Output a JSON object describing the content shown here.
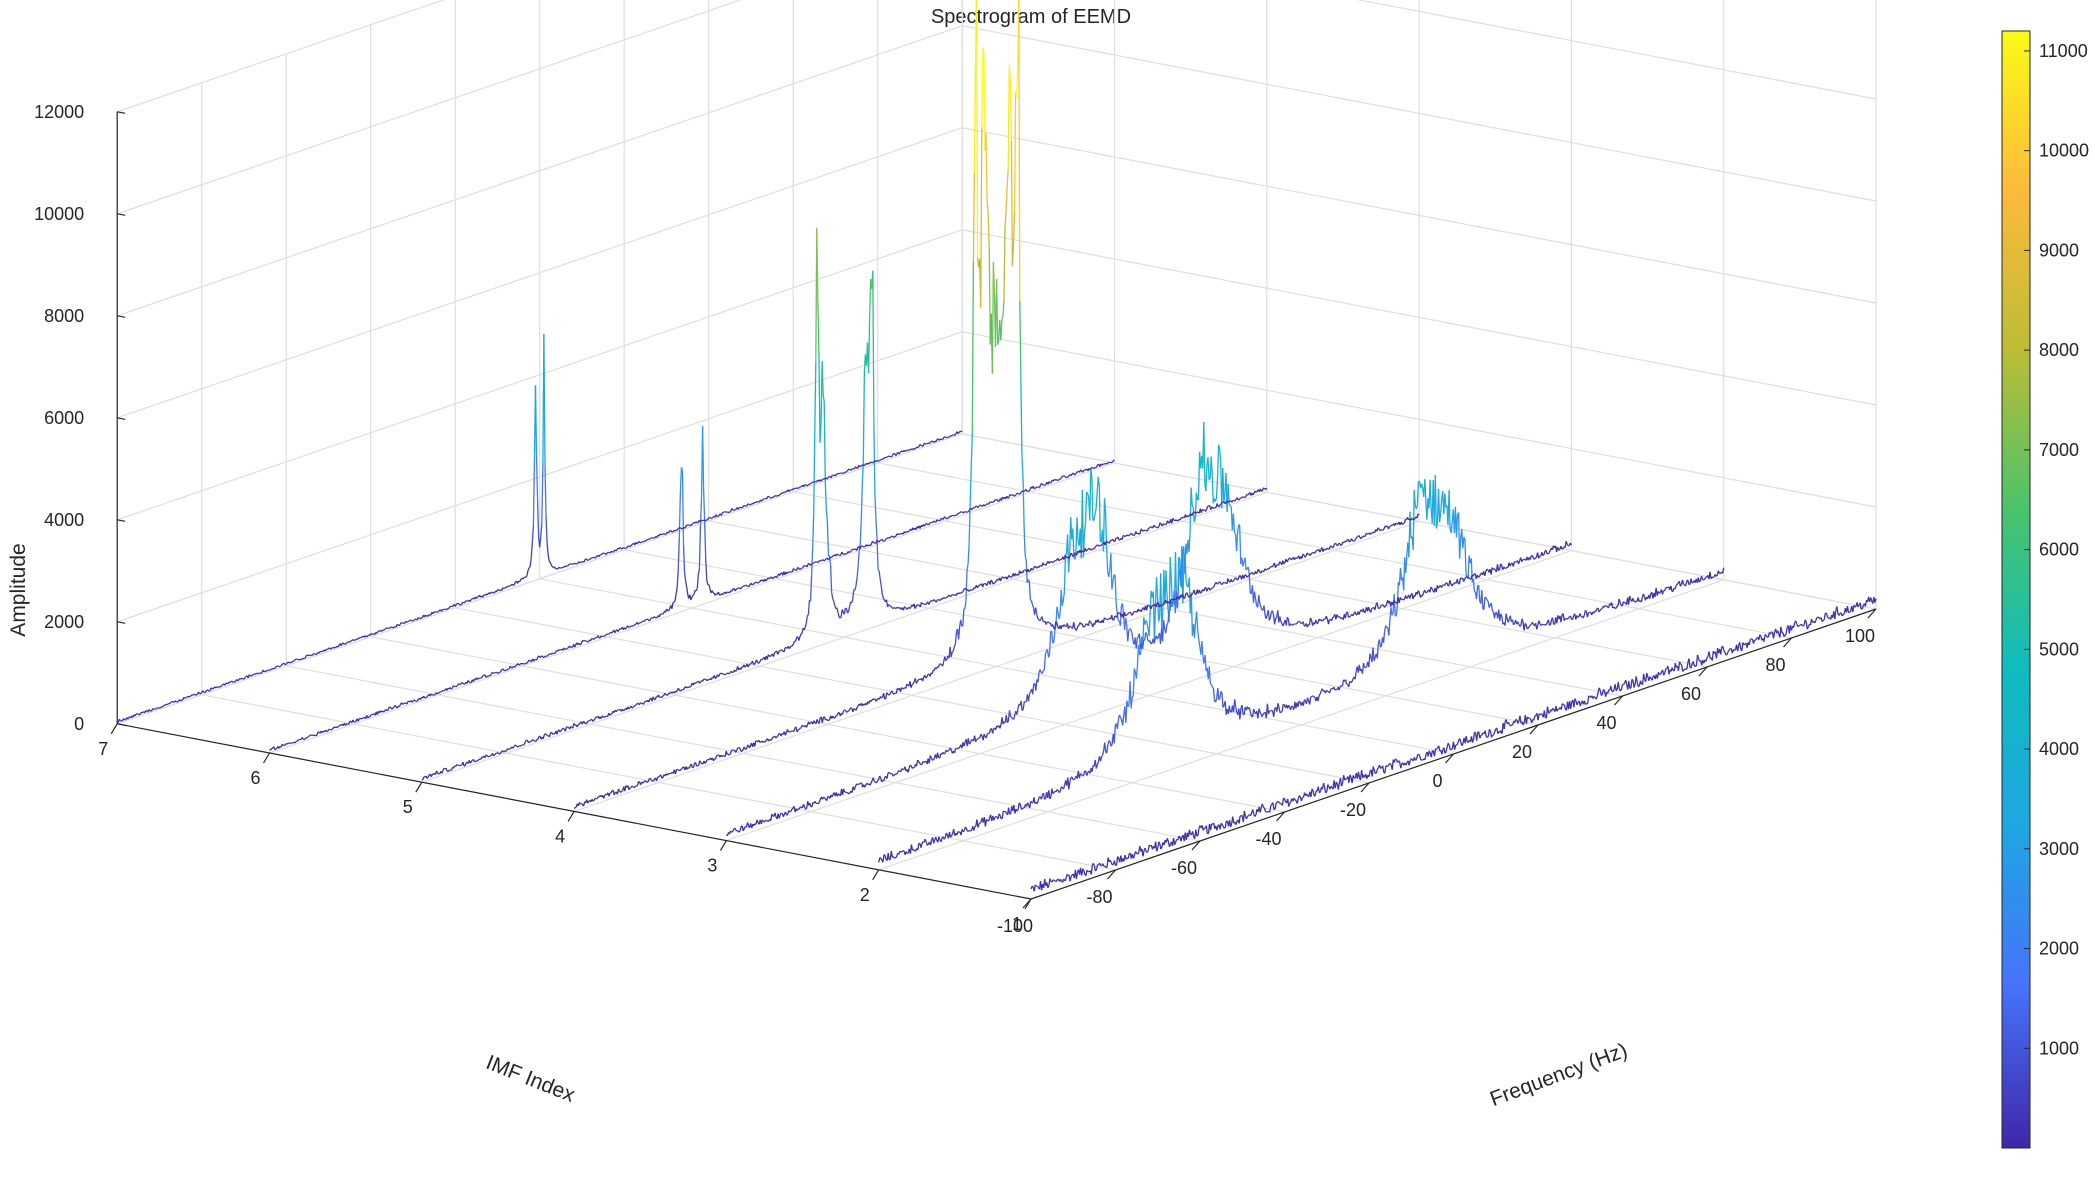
{
  "chart_data": {
    "type": "line",
    "view": "3d",
    "title": "Spectrogram of EEMD",
    "xlabel": "IMF Index",
    "ylabel": "Frequency (Hz)",
    "zlabel": "Amplitude",
    "xlim": [
      1,
      7
    ],
    "ylim": [
      -100,
      100
    ],
    "zlim": [
      0,
      12000
    ],
    "x_ticks": [
      "1",
      "2",
      "3",
      "4",
      "5",
      "6",
      "7"
    ],
    "y_ticks": [
      "-100",
      "-80",
      "-60",
      "-40",
      "-20",
      "0",
      "20",
      "40",
      "60",
      "80",
      "100"
    ],
    "z_ticks": [
      "0",
      "2000",
      "4000",
      "6000",
      "8000",
      "10000",
      "12000"
    ],
    "grid": true,
    "colormap": "parula",
    "colormap_stops": [
      "#3e26a8",
      "#4772fa",
      "#1fa6e3",
      "#0fbcbd",
      "#49c36b",
      "#bcbd35",
      "#fdba3c",
      "#f9fb15"
    ],
    "colorbar": {
      "range": [
        0,
        11200
      ],
      "ticks": [
        "1000",
        "2000",
        "3000",
        "4000",
        "5000",
        "6000",
        "7000",
        "8000",
        "9000",
        "10000",
        "11000"
      ]
    },
    "series": [
      {
        "imf": 1,
        "floor": 200,
        "peaks": []
      },
      {
        "imf": 2,
        "floor": 150,
        "peaks": [
          {
            "freq": -35,
            "amp": 2200,
            "width": 6
          },
          {
            "freq": -28,
            "amp": 2500,
            "width": 5
          },
          {
            "freq": 28,
            "amp": 2500,
            "width": 5
          },
          {
            "freq": 35,
            "amp": 2200,
            "width": 6
          }
        ]
      },
      {
        "imf": 3,
        "floor": 120,
        "peaks": [
          {
            "freq": -18,
            "amp": 2500,
            "width": 5
          },
          {
            "freq": -12,
            "amp": 2900,
            "width": 4
          },
          {
            "freq": 12,
            "amp": 2900,
            "width": 4
          },
          {
            "freq": 18,
            "amp": 2500,
            "width": 5
          }
        ]
      },
      {
        "imf": 4,
        "floor": 100,
        "peaks": [
          {
            "freq": -5,
            "amp": 11200,
            "width": 0.5
          },
          {
            "freq": 5,
            "amp": 11200,
            "width": 0.5
          },
          {
            "freq": -3,
            "amp": 8000,
            "width": 1
          },
          {
            "freq": 3,
            "amp": 8000,
            "width": 1
          },
          {
            "freq": 0,
            "amp": 5000,
            "width": 2.5
          }
        ]
      },
      {
        "imf": 5,
        "floor": 80,
        "peaks": [
          {
            "freq": -6.5,
            "amp": 6500,
            "width": 0.5
          },
          {
            "freq": 6.5,
            "amp": 6600,
            "width": 0.5
          },
          {
            "freq": -5,
            "amp": 4000,
            "width": 1
          },
          {
            "freq": 5,
            "amp": 4200,
            "width": 1
          }
        ]
      },
      {
        "imf": 6,
        "floor": 60,
        "peaks": [
          {
            "freq": -2.5,
            "amp": 3200,
            "width": 0.4
          },
          {
            "freq": 2.5,
            "amp": 3300,
            "width": 0.4
          }
        ]
      },
      {
        "imf": 7,
        "floor": 50,
        "peaks": [
          {
            "freq": -1,
            "amp": 4500,
            "width": 0.3
          },
          {
            "freq": 1,
            "amp": 4000,
            "width": 0.3
          }
        ]
      }
    ]
  }
}
